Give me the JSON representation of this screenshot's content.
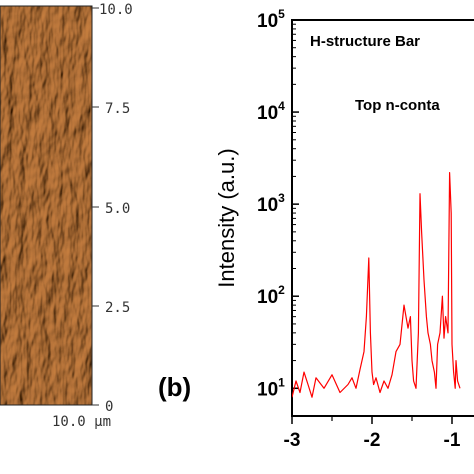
{
  "panel_a": {
    "y_ticks": [
      "10.0",
      "7.5",
      "5.0",
      "2.5",
      "0"
    ],
    "x_corner_label": "10.0 µm",
    "colors": {
      "base": "#a4580f",
      "highlight": "#f2c56a",
      "shadow": "#5a2a04"
    }
  },
  "panel_b": {
    "panel_label": "(b)",
    "inset_line1": "H-structure Bar",
    "inset_line2": "Top n-conta"
  },
  "chart_data": {
    "type": "line",
    "ylabel": "Intensity (a.u.)",
    "xlabel": "",
    "yscale": "log",
    "ylim": [
      5,
      100000
    ],
    "xlim": [
      -3,
      -0.5
    ],
    "x_ticks": [
      "-3",
      "-2",
      "-1"
    ],
    "y_ticks": [
      {
        "base": "10",
        "exp": "1"
      },
      {
        "base": "10",
        "exp": "2"
      },
      {
        "base": "10",
        "exp": "3"
      },
      {
        "base": "10",
        "exp": "4"
      },
      {
        "base": "10",
        "exp": "5"
      }
    ],
    "color": "#ff0000",
    "series": [
      {
        "x": [
          -3.0,
          -2.95,
          -2.9,
          -2.85,
          -2.8,
          -2.75,
          -2.7,
          -2.6,
          -2.5,
          -2.4,
          -2.3,
          -2.25,
          -2.2,
          -2.15,
          -2.1,
          -2.07,
          -2.04,
          -2.02,
          -2.0,
          -1.98,
          -1.95,
          -1.9,
          -1.85,
          -1.8,
          -1.75,
          -1.7,
          -1.65,
          -1.6,
          -1.55,
          -1.52,
          -1.5,
          -1.48,
          -1.45,
          -1.42,
          -1.4,
          -1.38,
          -1.35,
          -1.32,
          -1.3,
          -1.27,
          -1.25,
          -1.22,
          -1.2,
          -1.18,
          -1.15,
          -1.12,
          -1.1,
          -1.08,
          -1.05,
          -1.03,
          -1.01,
          -1.0,
          -0.98,
          -0.96,
          -0.95,
          -0.93,
          -0.9
        ],
        "y": [
          8,
          12,
          9,
          15,
          11,
          8,
          13,
          10,
          14,
          9,
          11,
          13,
          10,
          16,
          25,
          60,
          260,
          40,
          15,
          11,
          13,
          9,
          12,
          10,
          14,
          25,
          30,
          80,
          45,
          60,
          20,
          12,
          10,
          40,
          1300,
          500,
          150,
          60,
          40,
          30,
          20,
          15,
          10,
          30,
          40,
          100,
          35,
          60,
          40,
          2200,
          800,
          30,
          15,
          10,
          20,
          12,
          10
        ]
      }
    ]
  }
}
